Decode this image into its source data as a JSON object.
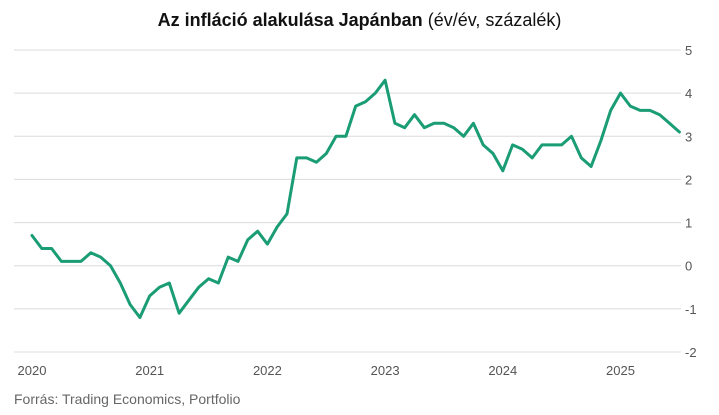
{
  "title": {
    "main": "Az infláció alakulása Japánban",
    "unit": "(év/év, százalék)"
  },
  "source": "Forrás: Trading Economics, Portfolio",
  "colors": {
    "line": "#1a9c74",
    "grid": "#dcdcdc",
    "tick_text": "#555555"
  },
  "chart_data": {
    "type": "line",
    "title": "Az infláció alakulása Japánban (év/év, százalék)",
    "xlabel": "",
    "ylabel": "",
    "ylim": [
      -2,
      5
    ],
    "y_ticks": [
      5,
      4,
      3,
      2,
      1,
      0,
      -1,
      -2
    ],
    "y_tick_labels": [
      "5",
      "4",
      "3",
      "2",
      "1",
      "0",
      "-1",
      "-2"
    ],
    "x_ticks": [
      "2020",
      "2021",
      "2022",
      "2023",
      "2024",
      "2025"
    ],
    "grid": true,
    "y_axis_side": "right",
    "x": [
      "2020-01",
      "2020-02",
      "2020-03",
      "2020-04",
      "2020-05",
      "2020-06",
      "2020-07",
      "2020-08",
      "2020-09",
      "2020-10",
      "2020-11",
      "2020-12",
      "2021-01",
      "2021-02",
      "2021-03",
      "2021-04",
      "2021-05",
      "2021-06",
      "2021-07",
      "2021-08",
      "2021-09",
      "2021-10",
      "2021-11",
      "2021-12",
      "2022-01",
      "2022-02",
      "2022-03",
      "2022-04",
      "2022-05",
      "2022-06",
      "2022-07",
      "2022-08",
      "2022-09",
      "2022-10",
      "2022-11",
      "2022-12",
      "2023-01",
      "2023-02",
      "2023-03",
      "2023-04",
      "2023-05",
      "2023-06",
      "2023-07",
      "2023-08",
      "2023-09",
      "2023-10",
      "2023-11",
      "2023-12",
      "2024-01",
      "2024-02",
      "2024-03",
      "2024-04",
      "2024-05",
      "2024-06",
      "2024-07",
      "2024-08",
      "2024-09",
      "2024-10",
      "2024-11",
      "2024-12",
      "2025-01",
      "2025-02",
      "2025-03",
      "2025-04",
      "2025-05",
      "2025-06",
      "2025-07"
    ],
    "series": [
      {
        "values": [
          0.7,
          0.4,
          0.4,
          0.1,
          0.1,
          0.1,
          0.3,
          0.2,
          0.0,
          -0.4,
          -0.9,
          -1.2,
          -0.7,
          -0.5,
          -0.4,
          -1.1,
          -0.8,
          -0.5,
          -0.3,
          -0.4,
          0.2,
          0.1,
          0.6,
          0.8,
          0.5,
          0.9,
          1.2,
          2.5,
          2.5,
          2.4,
          2.6,
          3.0,
          3.0,
          3.7,
          3.8,
          4.0,
          4.3,
          3.3,
          3.2,
          3.5,
          3.2,
          3.3,
          3.3,
          3.2,
          3.0,
          3.3,
          2.8,
          2.6,
          2.2,
          2.8,
          2.7,
          2.5,
          2.8,
          2.8,
          2.8,
          3.0,
          2.5,
          2.3,
          2.9,
          3.6,
          4.0,
          3.7,
          3.6,
          3.6,
          3.5,
          3.3,
          3.1
        ]
      }
    ]
  }
}
